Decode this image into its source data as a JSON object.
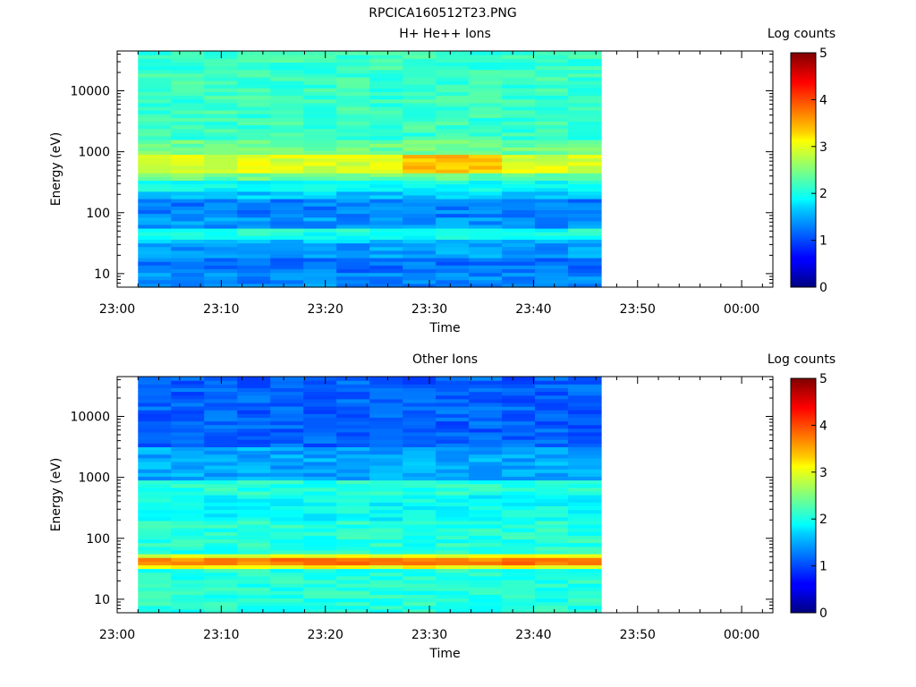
{
  "figure_title": "RPCICA160512T23.PNG",
  "chart_data": [
    {
      "type": "heatmap",
      "title": "H+ He++ Ions",
      "xlabel": "Time",
      "ylabel": "Energy (eV)",
      "yscale": "log",
      "xticks": [
        "23:00",
        "23:10",
        "23:20",
        "23:30",
        "23:40",
        "23:50",
        "00:00"
      ],
      "xlim_minutes": [
        0,
        63
      ],
      "data_x_minutes": [
        2,
        46.5
      ],
      "yticks": [
        10,
        100,
        1000,
        10000
      ],
      "yticklabels": [
        "10",
        "100",
        "1000",
        "10000"
      ],
      "ylim": [
        6,
        45000
      ],
      "colorbar": {
        "label": "Log counts",
        "range": [
          0,
          5
        ],
        "ticks": [
          "0",
          "1",
          "2",
          "3",
          "4",
          "5"
        ]
      },
      "profile_log_counts": [
        {
          "energy_range": [
            6,
            10
          ],
          "log_counts": 1.3
        },
        {
          "energy_range": [
            10,
            18
          ],
          "log_counts": 1.2
        },
        {
          "energy_range": [
            18,
            30
          ],
          "log_counts": 1.4
        },
        {
          "energy_range": [
            30,
            38
          ],
          "log_counts": 1.6
        },
        {
          "energy_range": [
            38,
            55
          ],
          "log_counts": 2.0
        },
        {
          "energy_range": [
            55,
            90
          ],
          "log_counts": 1.35
        },
        {
          "energy_range": [
            90,
            160
          ],
          "log_counts": 1.25
        },
        {
          "energy_range": [
            160,
            220
          ],
          "log_counts": 1.6
        },
        {
          "energy_range": [
            220,
            350
          ],
          "log_counts": 1.9
        },
        {
          "energy_range": [
            350,
            450
          ],
          "log_counts": 2.4
        },
        {
          "energy_range": [
            450,
            850
          ],
          "log_counts": 2.95
        },
        {
          "energy_range": [
            850,
            1500
          ],
          "log_counts": 2.4
        },
        {
          "energy_range": [
            1500,
            45000
          ],
          "log_counts": 2.15
        }
      ],
      "peak_band": {
        "energy": 700,
        "times_minutes": [
          30,
          33,
          36
        ],
        "log_counts": 3.4
      }
    },
    {
      "type": "heatmap",
      "title": "Other Ions",
      "xlabel": "Time",
      "ylabel": "Energy (eV)",
      "yscale": "log",
      "xticks": [
        "23:00",
        "23:10",
        "23:20",
        "23:30",
        "23:40",
        "23:50",
        "00:00"
      ],
      "xlim_minutes": [
        0,
        63
      ],
      "data_x_minutes": [
        2,
        46.5
      ],
      "yticks": [
        10,
        100,
        1000,
        10000
      ],
      "yticklabels": [
        "10",
        "100",
        "1000",
        "10000"
      ],
      "ylim": [
        6,
        45000
      ],
      "colorbar": {
        "label": "Log counts",
        "range": [
          0,
          5
        ],
        "ticks": [
          "0",
          "1",
          "2",
          "3",
          "4",
          "5"
        ]
      },
      "profile_log_counts": [
        {
          "energy_range": [
            6,
            30
          ],
          "log_counts": 2.05
        },
        {
          "energy_range": [
            30,
            36
          ],
          "log_counts": 3.1
        },
        {
          "energy_range": [
            36,
            48
          ],
          "log_counts": 3.75
        },
        {
          "energy_range": [
            48,
            55
          ],
          "log_counts": 3.0
        },
        {
          "energy_range": [
            55,
            200
          ],
          "log_counts": 2.05
        },
        {
          "energy_range": [
            200,
            500
          ],
          "log_counts": 1.9
        },
        {
          "energy_range": [
            500,
            900
          ],
          "log_counts": 2.05
        },
        {
          "energy_range": [
            900,
            3000
          ],
          "log_counts": 1.45
        },
        {
          "energy_range": [
            3000,
            45000
          ],
          "log_counts": 1.1
        }
      ]
    }
  ]
}
